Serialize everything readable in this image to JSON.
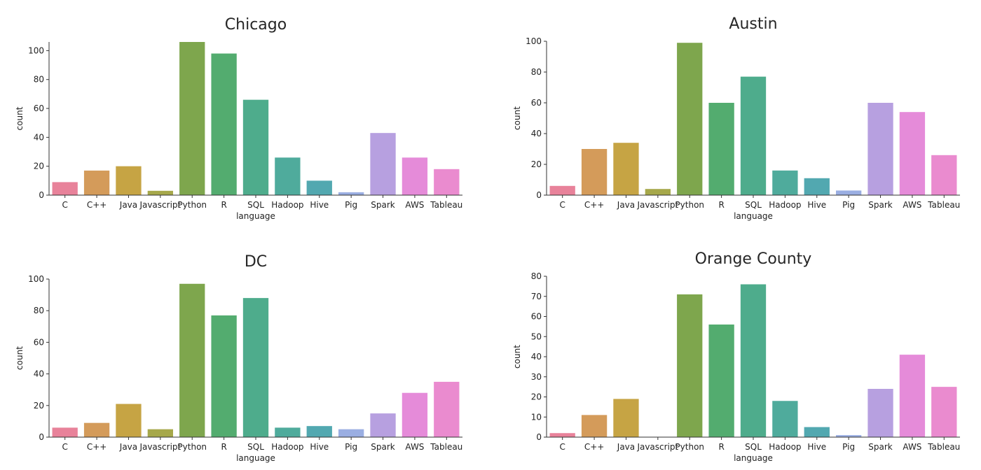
{
  "chart_data": [
    {
      "type": "bar",
      "title": "Chicago",
      "xlabel": "language",
      "ylabel": "count",
      "categories": [
        "C",
        "C++",
        "Java",
        "Javascript",
        "Python",
        "R",
        "SQL",
        "Hadoop",
        "Hive",
        "Pig",
        "Spark",
        "AWS",
        "Tableau"
      ],
      "values": [
        9,
        17,
        20,
        3,
        106,
        98,
        66,
        26,
        10,
        2,
        43,
        26,
        18
      ],
      "ylim": [
        0,
        106
      ],
      "yticks": [
        0,
        20,
        40,
        60,
        80,
        100
      ],
      "grid": false
    },
    {
      "type": "bar",
      "title": "Austin",
      "xlabel": "language",
      "ylabel": "count",
      "categories": [
        "C",
        "C++",
        "Java",
        "Javascript",
        "Python",
        "R",
        "SQL",
        "Hadoop",
        "Hive",
        "Pig",
        "Spark",
        "AWS",
        "Tableau"
      ],
      "values": [
        6,
        30,
        34,
        4,
        99,
        60,
        77,
        16,
        11,
        3,
        60,
        54,
        26
      ],
      "ylim": [
        0,
        100
      ],
      "yticks": [
        0,
        20,
        40,
        60,
        80,
        100
      ],
      "grid": false
    },
    {
      "type": "bar",
      "title": "DC",
      "xlabel": "language",
      "ylabel": "count",
      "categories": [
        "C",
        "C++",
        "Java",
        "Javascript",
        "Python",
        "R",
        "SQL",
        "Hadoop",
        "Hive",
        "Pig",
        "Spark",
        "AWS",
        "Tableau"
      ],
      "values": [
        6,
        9,
        21,
        5,
        97,
        77,
        88,
        6,
        7,
        5,
        15,
        28,
        35
      ],
      "ylim": [
        0,
        100
      ],
      "yticks": [
        0,
        20,
        40,
        60,
        80,
        100
      ],
      "grid": false
    },
    {
      "type": "bar",
      "title": "Orange County",
      "xlabel": "language",
      "ylabel": "count",
      "categories": [
        "C",
        "C++",
        "Java",
        "Javascript",
        "Python",
        "R",
        "SQL",
        "Hadoop",
        "Hive",
        "Pig",
        "Spark",
        "AWS",
        "Tableau"
      ],
      "values": [
        2,
        11,
        19,
        0,
        71,
        56,
        76,
        18,
        5,
        1,
        24,
        41,
        25
      ],
      "ylim": [
        0,
        80
      ],
      "yticks": [
        0,
        10,
        20,
        30,
        40,
        50,
        60,
        70,
        80
      ],
      "grid": false
    }
  ],
  "colors": [
    "#e8829a",
    "#d49b5a",
    "#c6a444",
    "#a6a84a",
    "#7ea64d",
    "#53ac6f",
    "#4eac8c",
    "#4fab9c",
    "#52a8b0",
    "#9aaee2",
    "#b7a0e0",
    "#e58bd9",
    "#ea8bcf"
  ]
}
